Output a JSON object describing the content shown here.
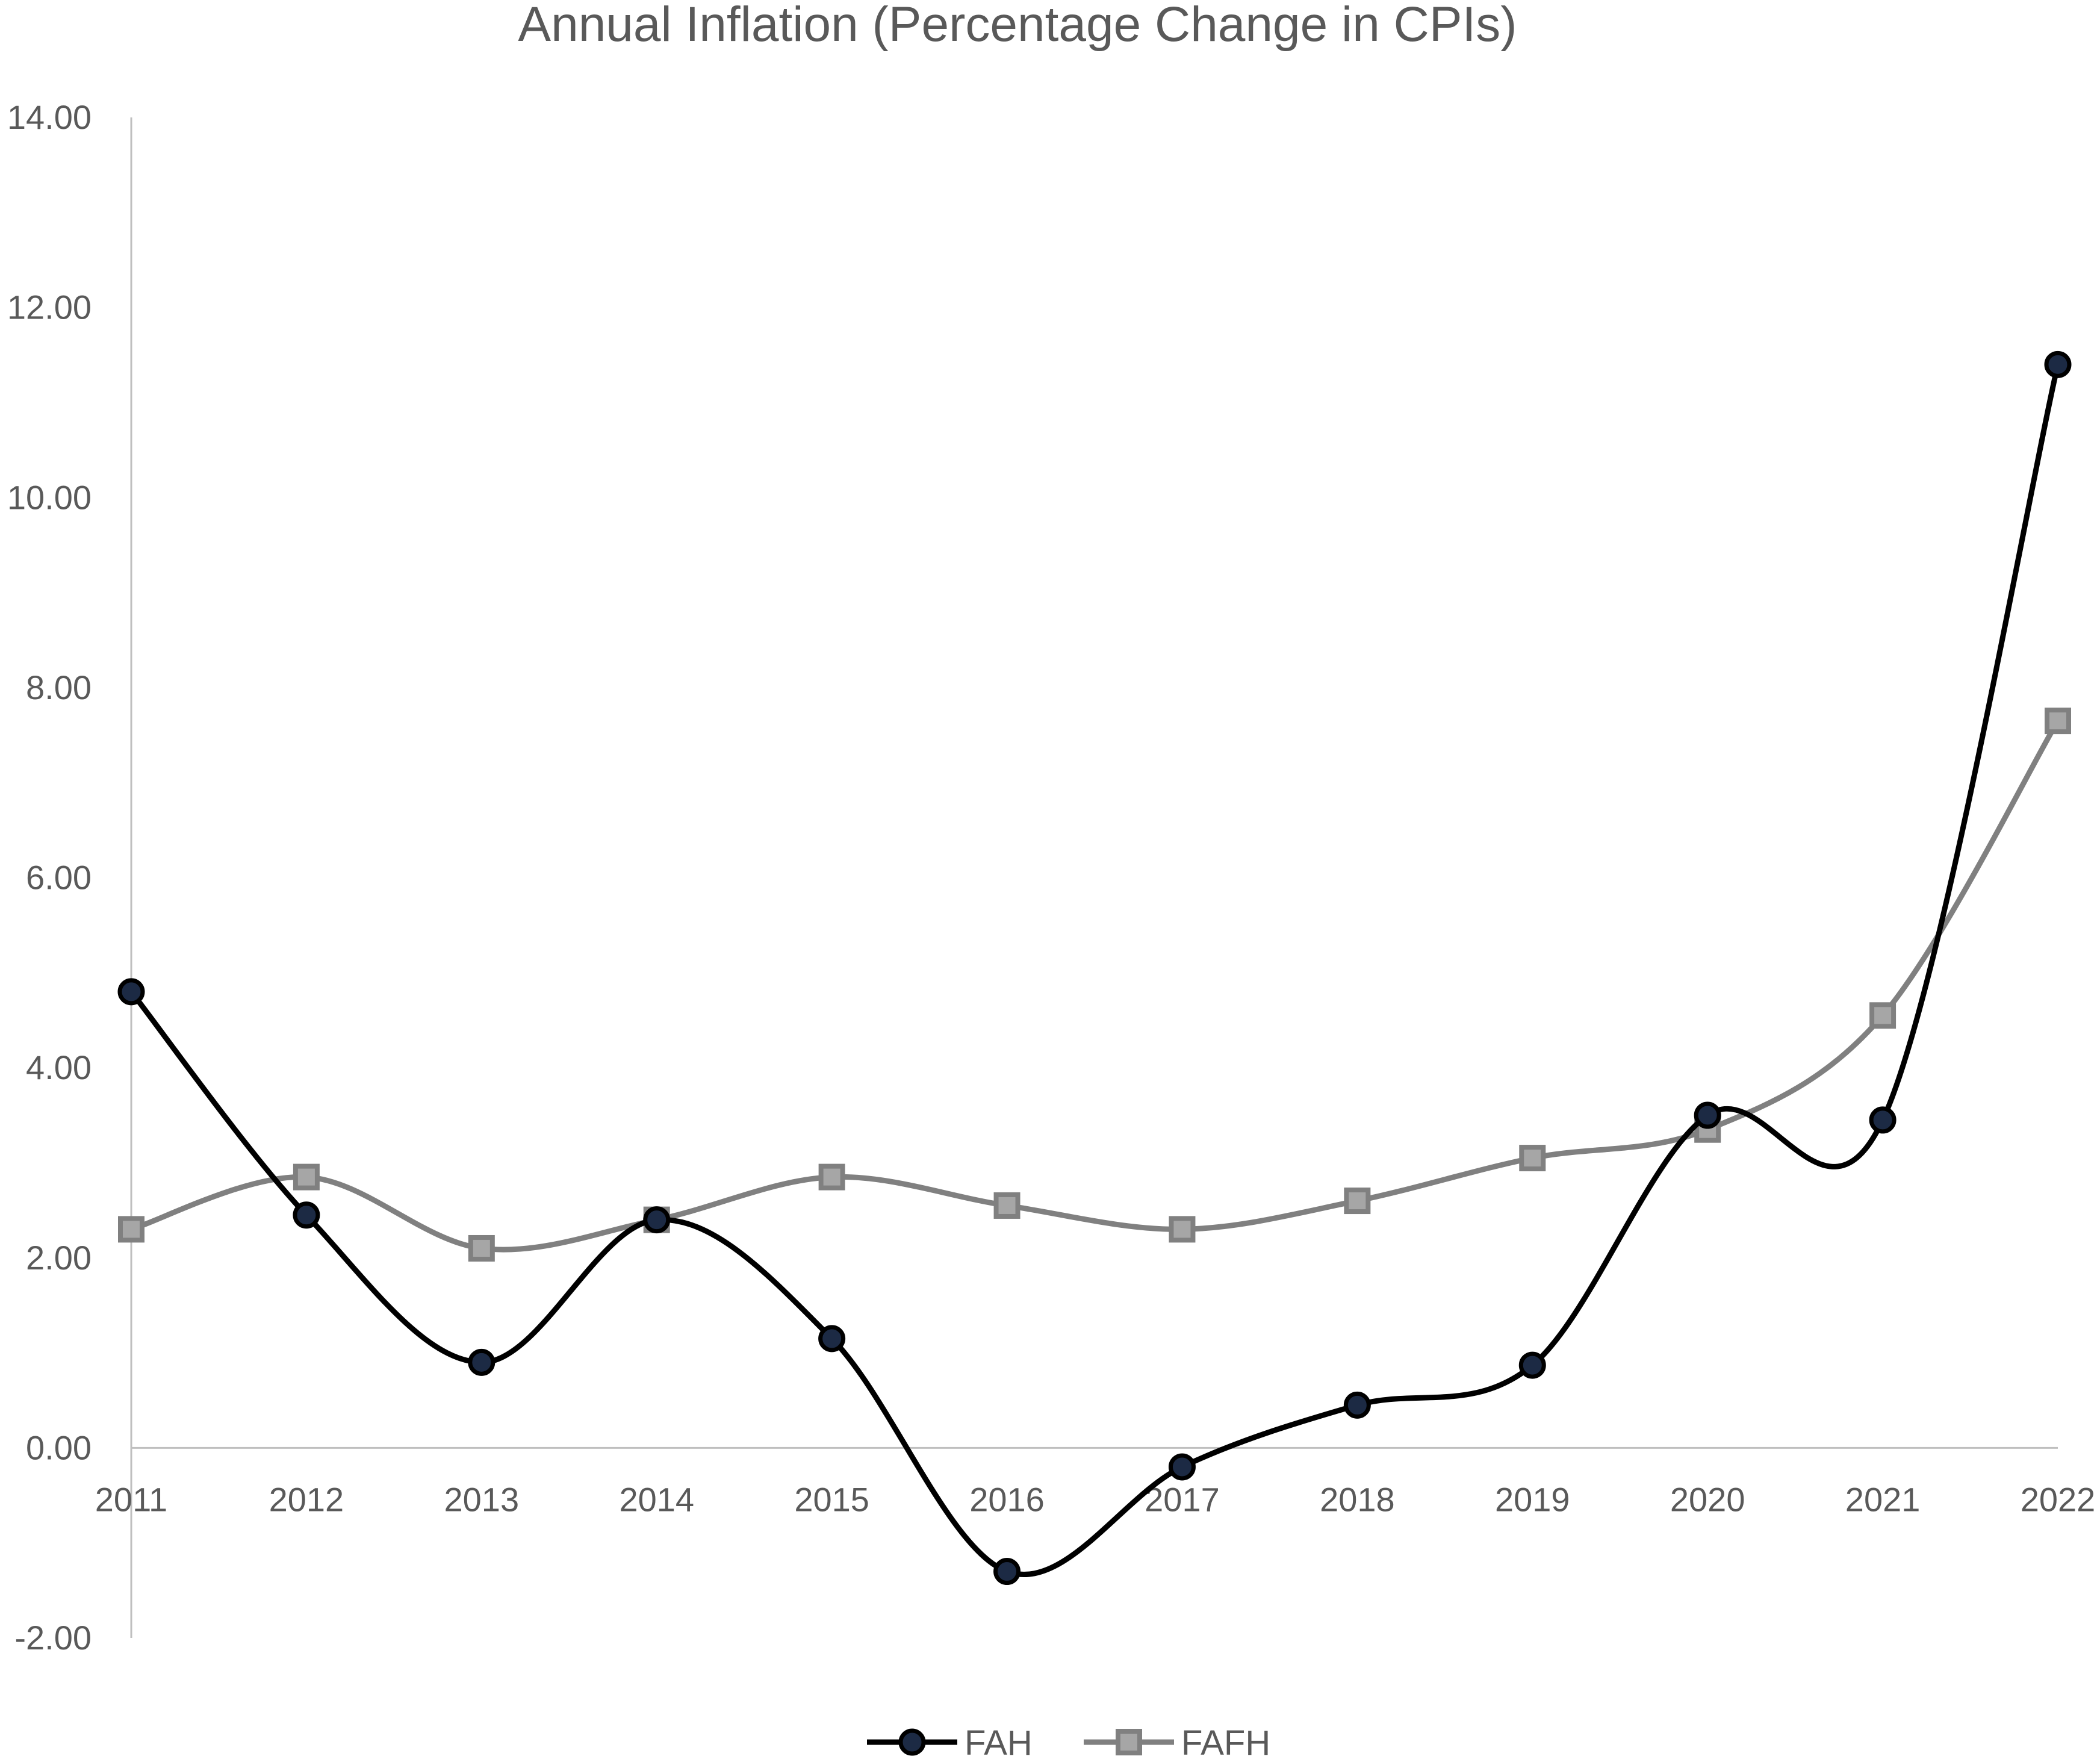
{
  "chart_data": {
    "type": "line",
    "title": "Annual Inflation (Percentage Change in CPIs)",
    "xlabel": "",
    "ylabel": "",
    "categories": [
      "2011",
      "2012",
      "2013",
      "2014",
      "2015",
      "2016",
      "2017",
      "2018",
      "2019",
      "2020",
      "2021",
      "2022"
    ],
    "ylim": [
      -2,
      14
    ],
    "yticks": [
      "14.00",
      "12.00",
      "10.00",
      "8.00",
      "6.00",
      "4.00",
      "2.00",
      "0.00",
      "-2.00"
    ],
    "grid": false,
    "legend": "bottom",
    "smooth": true,
    "series": [
      {
        "name": "FAH",
        "values": [
          4.8,
          2.45,
          0.9,
          2.4,
          1.15,
          -1.3,
          -0.2,
          0.45,
          0.87,
          3.5,
          3.45,
          11.4
        ],
        "color": "#000000",
        "marker": "circle",
        "marker_fill": "#1c2a44"
      },
      {
        "name": "FAFH",
        "values": [
          2.3,
          2.85,
          2.1,
          2.4,
          2.85,
          2.55,
          2.3,
          2.6,
          3.05,
          3.35,
          4.55,
          7.65
        ],
        "color": "#808080",
        "marker": "square",
        "marker_fill": "#a6a6a6"
      }
    ]
  }
}
